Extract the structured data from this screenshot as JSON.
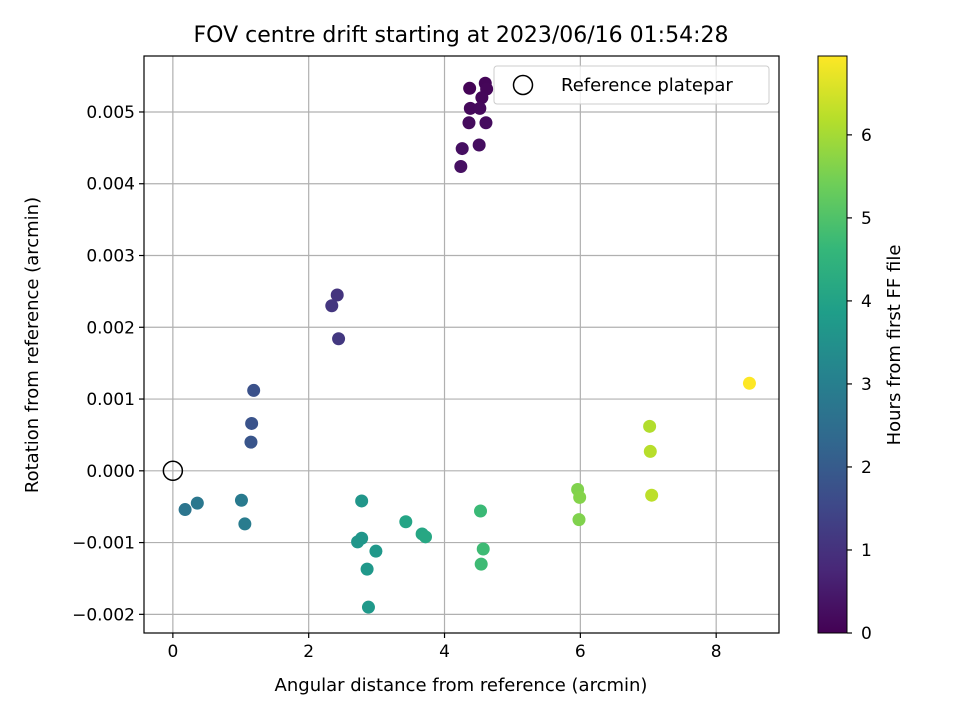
{
  "chart_data": {
    "type": "scatter",
    "title": "FOV centre drift starting at 2023/06/16 01:54:28",
    "xlabel": "Angular distance from reference (arcmin)",
    "ylabel": "Rotation from reference (arcmin)",
    "xlim": [
      -0.425,
      8.925
    ],
    "ylim": [
      -0.00226,
      0.00578
    ],
    "xticks": [
      0,
      2,
      4,
      6,
      8
    ],
    "xtick_labels": [
      "0",
      "2",
      "4",
      "6",
      "8"
    ],
    "yticks": [
      -0.002,
      -0.001,
      0.0,
      0.001,
      0.002,
      0.003,
      0.004,
      0.005
    ],
    "ytick_labels": [
      "−0.002",
      "−0.001",
      "0.000",
      "0.001",
      "0.002",
      "0.003",
      "0.004",
      "0.005"
    ],
    "grid": true,
    "legend": {
      "position": "top-right",
      "entries": [
        "Reference platepar"
      ]
    },
    "colorbar": {
      "label": "Hours from first FF file",
      "colormap": "viridis",
      "range": [
        0,
        6.95
      ],
      "ticks": [
        0,
        1,
        2,
        3,
        4,
        5,
        6
      ],
      "tick_labels": [
        "0",
        "1",
        "2",
        "3",
        "4",
        "5",
        "6"
      ]
    },
    "reference_point": {
      "x": 0,
      "y": 0
    },
    "points": [
      {
        "x": 4.37,
        "y": 0.00533,
        "c": 0.05
      },
      {
        "x": 4.6,
        "y": 0.0054,
        "c": 0.08
      },
      {
        "x": 4.62,
        "y": 0.00532,
        "c": 0.1
      },
      {
        "x": 4.55,
        "y": 0.0052,
        "c": 0.12
      },
      {
        "x": 4.38,
        "y": 0.00505,
        "c": 0.15
      },
      {
        "x": 4.52,
        "y": 0.00505,
        "c": 0.18
      },
      {
        "x": 4.36,
        "y": 0.00485,
        "c": 0.2
      },
      {
        "x": 4.61,
        "y": 0.00485,
        "c": 0.22
      },
      {
        "x": 4.51,
        "y": 0.00454,
        "c": 0.25
      },
      {
        "x": 4.26,
        "y": 0.00449,
        "c": 0.28
      },
      {
        "x": 4.24,
        "y": 0.00424,
        "c": 0.3
      },
      {
        "x": 2.42,
        "y": 0.00245,
        "c": 1.05
      },
      {
        "x": 2.34,
        "y": 0.0023,
        "c": 1.1
      },
      {
        "x": 2.44,
        "y": 0.00184,
        "c": 1.15
      },
      {
        "x": 1.19,
        "y": 0.00112,
        "c": 1.75
      },
      {
        "x": 1.16,
        "y": 0.00066,
        "c": 1.8
      },
      {
        "x": 1.15,
        "y": 0.0004,
        "c": 1.85
      },
      {
        "x": 0.18,
        "y": -0.00054,
        "c": 2.7
      },
      {
        "x": 0.36,
        "y": -0.00045,
        "c": 2.75
      },
      {
        "x": 1.01,
        "y": -0.00041,
        "c": 2.85
      },
      {
        "x": 1.06,
        "y": -0.00074,
        "c": 2.9
      },
      {
        "x": 2.78,
        "y": -0.00042,
        "c": 3.65
      },
      {
        "x": 2.78,
        "y": -0.00094,
        "c": 3.65
      },
      {
        "x": 2.72,
        "y": -0.00099,
        "c": 3.65
      },
      {
        "x": 2.99,
        "y": -0.00112,
        "c": 3.7
      },
      {
        "x": 2.86,
        "y": -0.00137,
        "c": 3.7
      },
      {
        "x": 2.88,
        "y": -0.0019,
        "c": 3.72
      },
      {
        "x": 3.43,
        "y": -0.00071,
        "c": 4.05
      },
      {
        "x": 3.67,
        "y": -0.00088,
        "c": 4.1
      },
      {
        "x": 3.72,
        "y": -0.00092,
        "c": 4.15
      },
      {
        "x": 4.53,
        "y": -0.00056,
        "c": 4.7
      },
      {
        "x": 4.57,
        "y": -0.00109,
        "c": 4.75
      },
      {
        "x": 4.54,
        "y": -0.0013,
        "c": 4.75
      },
      {
        "x": 5.96,
        "y": -0.00026,
        "c": 5.6
      },
      {
        "x": 5.99,
        "y": -0.00037,
        "c": 5.65
      },
      {
        "x": 5.98,
        "y": -0.00068,
        "c": 5.6
      },
      {
        "x": 7.02,
        "y": 0.00062,
        "c": 6.15
      },
      {
        "x": 7.03,
        "y": 0.00027,
        "c": 6.2
      },
      {
        "x": 7.05,
        "y": -0.00034,
        "c": 6.25
      },
      {
        "x": 8.49,
        "y": 0.00122,
        "c": 6.95
      }
    ]
  }
}
